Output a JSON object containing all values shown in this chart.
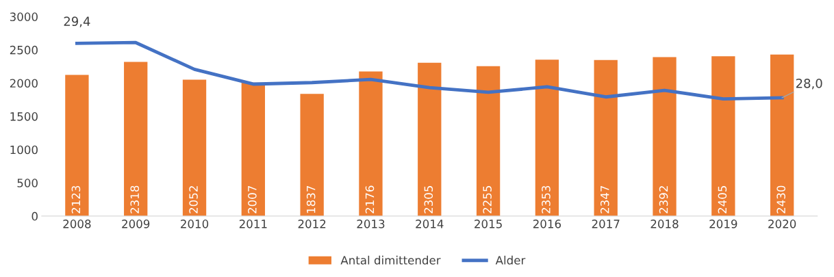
{
  "chart_data": {
    "type": "bar",
    "categories": [
      "2008",
      "2009",
      "2010",
      "2011",
      "2012",
      "2013",
      "2014",
      "2015",
      "2016",
      "2017",
      "2018",
      "2019",
      "2020"
    ],
    "series": [
      {
        "name": "Antal dimittender",
        "color": "#ed7d31",
        "values": [
          2123,
          2318,
          2052,
          2007,
          1837,
          2176,
          2305,
          2255,
          2353,
          2347,
          2392,
          2405,
          2430
        ],
        "value_labels": [
          "2123",
          "2318",
          "2052",
          "2007",
          "1837",
          "2176",
          "2305",
          "2255",
          "2353",
          "2347",
          "2392",
          "2405",
          "2430"
        ]
      },
      {
        "name": "Alder",
        "type": "line",
        "axis": "y2",
        "color": "#4472c4",
        "values": [
          29.4,
          29.42,
          28.73,
          28.35,
          28.39,
          28.47,
          28.26,
          28.14,
          28.28,
          28.02,
          28.19,
          27.97,
          28.0
        ],
        "value_labels": [
          "29,4",
          null,
          null,
          null,
          null,
          null,
          null,
          null,
          null,
          null,
          null,
          null,
          "28,0"
        ]
      }
    ],
    "ylim": [
      0,
      3000
    ],
    "yticks": [
      0,
      500,
      1000,
      1500,
      2000,
      2500,
      3000
    ],
    "grid": false,
    "legend": "bottom",
    "marker": "none",
    "line_style": "solid"
  }
}
